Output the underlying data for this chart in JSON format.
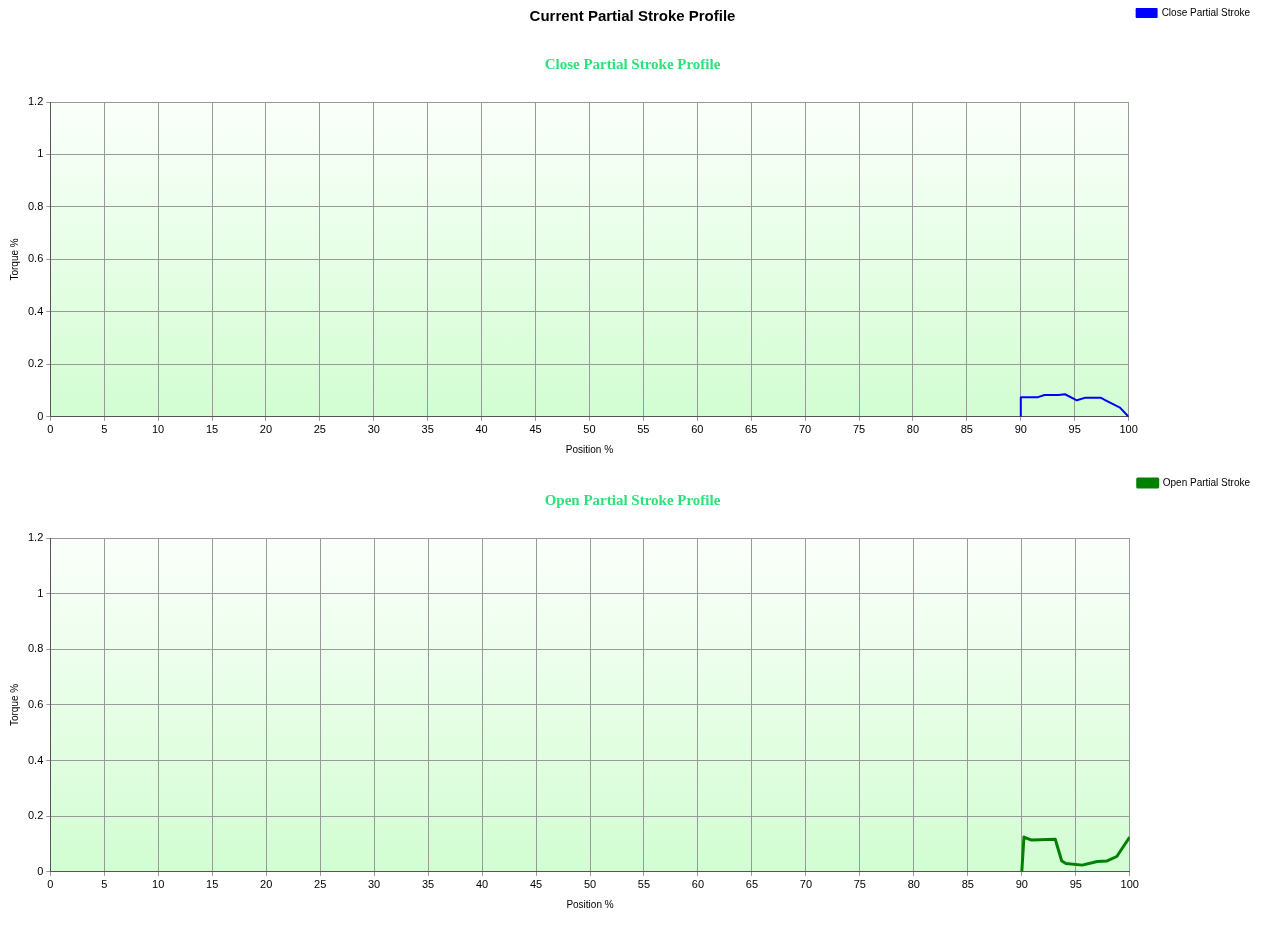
{
  "chart_data": [
    {
      "type": "line",
      "title": "Current Partial Stroke Profile",
      "subtitle": "Close Partial Stroke Profile",
      "xlabel": "Position %",
      "ylabel": "Torque %",
      "xlim": [
        0,
        100
      ],
      "xticks": [
        0,
        5,
        10,
        15,
        20,
        25,
        30,
        35,
        40,
        45,
        50,
        55,
        60,
        65,
        70,
        75,
        80,
        85,
        90,
        95,
        100
      ],
      "ylim": [
        0,
        1.2
      ],
      "yticks": [
        0,
        0.2,
        0.4,
        0.6,
        0.8,
        1,
        1.2
      ],
      "grid": true,
      "legend": "right",
      "marker": "none",
      "line_style": "solid",
      "series": [
        {
          "name": "Close Partial Stroke",
          "color": "#0000ff",
          "x": [
            90,
            90,
            91.6,
            92.2,
            93.5,
            94.1,
            95.2,
            96,
            97.4,
            98,
            99.2,
            100
          ],
          "values": [
            0,
            0.075,
            0.075,
            0.083,
            0.083,
            0.086,
            0.063,
            0.073,
            0.073,
            0.06,
            0.035,
            0
          ]
        }
      ]
    },
    {
      "type": "line",
      "subtitle": "Open Partial Stroke Profile",
      "xlabel": "Position %",
      "ylabel": "Torque %",
      "xlim": [
        0,
        100
      ],
      "xticks": [
        0,
        5,
        10,
        15,
        20,
        25,
        30,
        35,
        40,
        45,
        50,
        55,
        60,
        65,
        70,
        75,
        80,
        85,
        90,
        95,
        100
      ],
      "ylim": [
        0,
        1.2
      ],
      "yticks": [
        0,
        0.2,
        0.4,
        0.6,
        0.8,
        1,
        1.2
      ],
      "grid": true,
      "legend": "right",
      "marker": "none",
      "line_style": "solid",
      "series": [
        {
          "name": "Open Partial Stroke",
          "color": "#008000",
          "x": [
            90,
            90.2,
            90.9,
            93.1,
            93.7,
            94.1,
            95.6,
            97,
            97.9,
            98.8,
            100
          ],
          "values": [
            0,
            0.125,
            0.114,
            0.117,
            0.039,
            0.03,
            0.024,
            0.037,
            0.039,
            0.055,
            0.125
          ]
        }
      ]
    }
  ]
}
